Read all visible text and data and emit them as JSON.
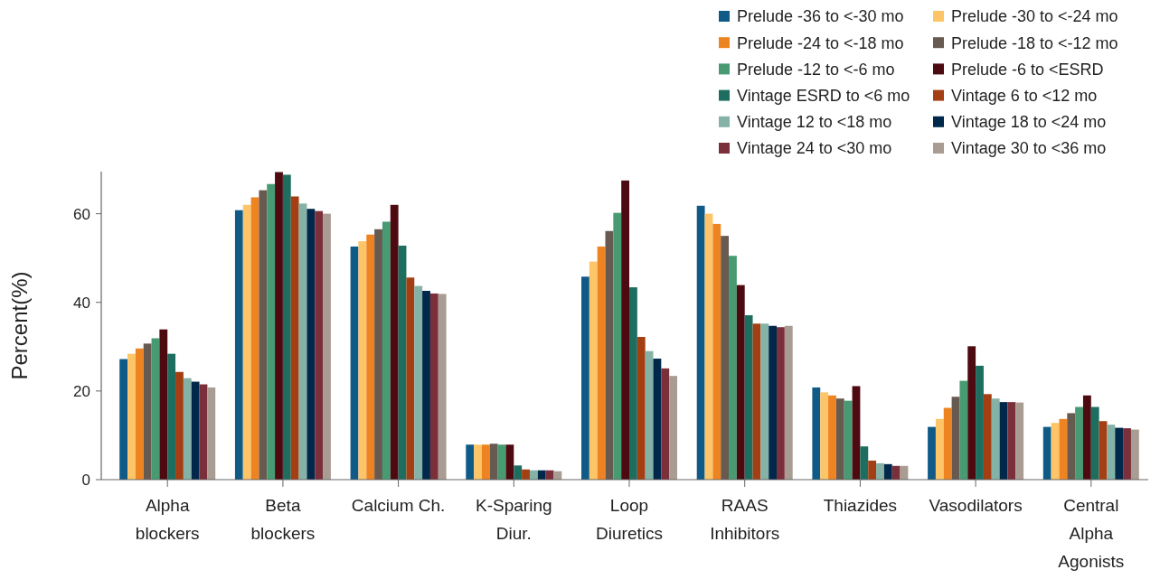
{
  "chart_data": {
    "type": "bar",
    "ylabel": "Percent(%)",
    "categories": [
      "Alpha blockers",
      "Beta blockers",
      "Calcium Ch.",
      "K-Sparing Diur.",
      "Loop Diuretics",
      "RAAS Inhibitors",
      "Thiazides",
      "Vasodilators",
      "Central Alpha Agonists"
    ],
    "ylim": [
      0,
      69.5
    ],
    "yticks": [
      0,
      20,
      40,
      60
    ],
    "grid": false,
    "legend": "top right",
    "series": [
      {
        "name": "Prelude -36 to <-30 mo",
        "color": "#0f5a87",
        "values": [
          27.2,
          60.8,
          52.6,
          7.9,
          45.8,
          61.8,
          20.8,
          11.9,
          11.9
        ]
      },
      {
        "name": "Prelude -30 to <-24 mo",
        "color": "#fdc567",
        "values": [
          28.4,
          62.0,
          53.8,
          7.9,
          49.2,
          60.0,
          19.7,
          13.7,
          12.8
        ]
      },
      {
        "name": "Prelude -24 to <-18 mo",
        "color": "#ee8421",
        "values": [
          29.6,
          63.7,
          55.3,
          7.9,
          52.6,
          57.7,
          19.0,
          16.2,
          13.7
        ]
      },
      {
        "name": "Prelude -18 to <-12 mo",
        "color": "#675a50",
        "values": [
          30.7,
          65.3,
          56.5,
          8.1,
          56.1,
          55.0,
          18.3,
          18.7,
          15.0
        ]
      },
      {
        "name": "Prelude -12 to <-6 mo",
        "color": "#479a72",
        "values": [
          31.9,
          66.7,
          58.2,
          7.9,
          60.2,
          50.5,
          17.8,
          22.3,
          16.4
        ]
      },
      {
        "name": "Prelude -6 to <ESRD",
        "color": "#4d0a11",
        "values": [
          33.9,
          69.4,
          62.0,
          7.9,
          67.5,
          43.9,
          21.1,
          30.1,
          19.0
        ]
      },
      {
        "name": "Vintage ESRD to <6 mo",
        "color": "#1e6e60",
        "values": [
          28.4,
          68.8,
          52.8,
          3.2,
          43.4,
          37.1,
          7.5,
          25.7,
          16.4
        ]
      },
      {
        "name": "Vintage 6 to <12 mo",
        "color": "#a43f13",
        "values": [
          24.3,
          63.9,
          45.6,
          2.3,
          32.2,
          35.2,
          4.3,
          19.3,
          13.2
        ]
      },
      {
        "name": "Vintage 12 to <18 mo",
        "color": "#84b2a6",
        "values": [
          22.9,
          62.3,
          43.7,
          2.1,
          29.0,
          35.2,
          3.7,
          18.3,
          12.4
        ]
      },
      {
        "name": "Vintage 18 to <24 mo",
        "color": "#00284a",
        "values": [
          22.1,
          61.1,
          42.6,
          2.1,
          27.3,
          34.7,
          3.5,
          17.5,
          11.7
        ]
      },
      {
        "name": "Vintage 24 to <30 mo",
        "color": "#7b2f3a",
        "values": [
          21.5,
          60.6,
          42.0,
          2.1,
          25.1,
          34.4,
          3.1,
          17.5,
          11.6
        ]
      },
      {
        "name": "Vintage 30 to <36 mo",
        "color": "#a89c93",
        "values": [
          20.8,
          60.0,
          41.9,
          1.9,
          23.4,
          34.7,
          3.1,
          17.4,
          11.3
        ]
      }
    ]
  }
}
